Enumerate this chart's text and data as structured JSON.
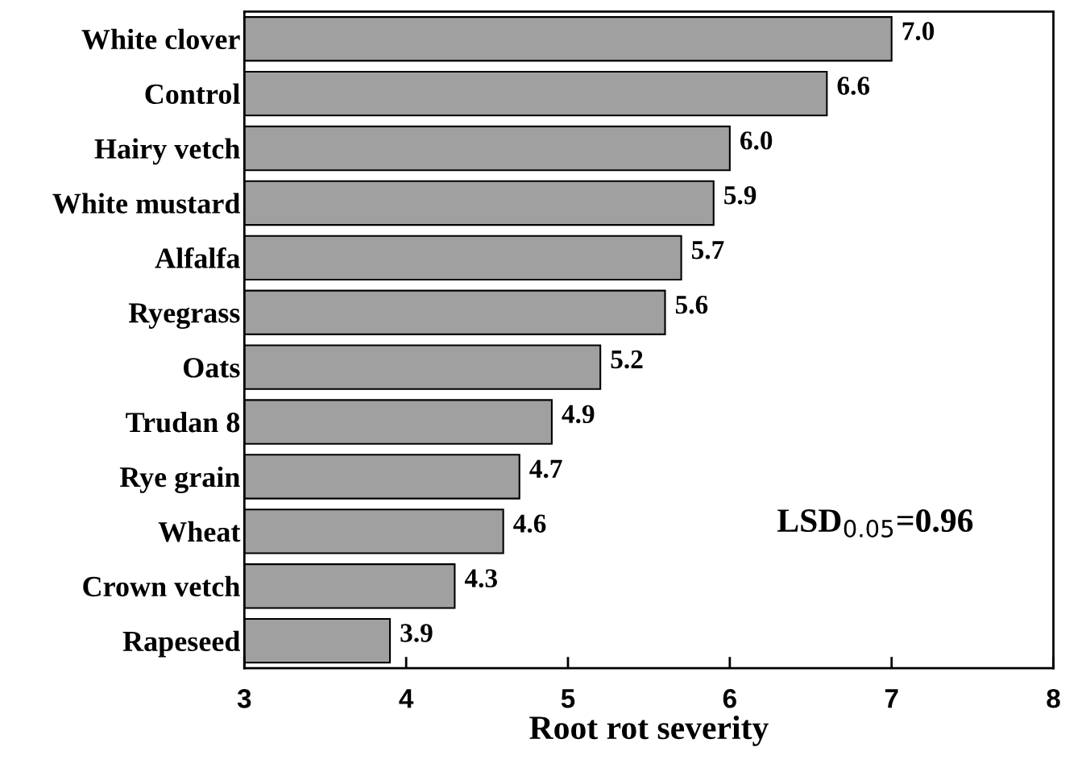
{
  "chart_data": {
    "type": "bar",
    "orientation": "horizontal",
    "xlabel": "Root rot severity",
    "categories": [
      "White clover",
      "Control",
      "Hairy vetch",
      "White mustard",
      "Alfalfa",
      "Ryegrass",
      "Oats",
      "Trudan 8",
      "Rye grain",
      "Wheat",
      "Crown vetch",
      "Rapeseed"
    ],
    "values": [
      7.0,
      6.6,
      6.0,
      5.9,
      5.7,
      5.6,
      5.2,
      4.9,
      4.7,
      4.6,
      4.3,
      3.9
    ],
    "value_labels": [
      "7.0",
      "6.6",
      "6.0",
      "5.9",
      "5.7",
      "5.6",
      "5.2",
      "4.9",
      "4.7",
      "4.6",
      "4.3",
      "3.9"
    ],
    "color": "#a0a0a0",
    "xlim": [
      3,
      8
    ],
    "xticks": [
      3,
      4,
      5,
      6,
      7,
      8
    ],
    "annotations": [
      "LSD$_{0.05}$=0.96"
    ],
    "grid": false,
    "legend": false
  }
}
